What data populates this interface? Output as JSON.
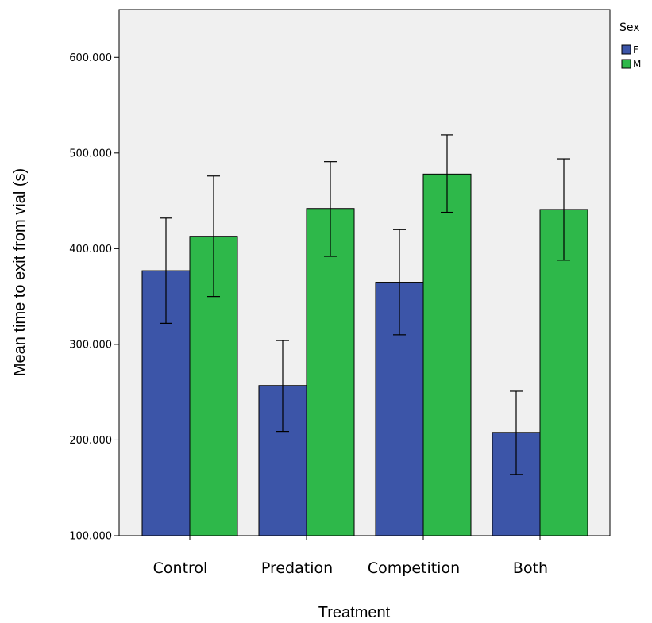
{
  "chart_data": {
    "type": "bar",
    "xlabel": "Treatment",
    "ylabel": "Mean time to exit from vial (s)",
    "categories": [
      "Control",
      "Predation",
      "Competition",
      "Both"
    ],
    "ylim": [
      100,
      650
    ],
    "yticks": [
      100,
      200,
      300,
      400,
      500,
      600
    ],
    "ytick_labels": [
      "100.000",
      "200.000",
      "300.000",
      "400.000",
      "500.000",
      "600.000"
    ],
    "grid": false,
    "legend": {
      "title": "Sex",
      "placement": "top-right outside"
    },
    "series": [
      {
        "name": "F",
        "color": "#3c55a8",
        "values": [
          377,
          257,
          365,
          208
        ],
        "error_low": [
          322,
          209,
          310,
          164
        ],
        "error_high": [
          432,
          304,
          420,
          251
        ]
      },
      {
        "name": "M",
        "color": "#2eb84a",
        "values": [
          413,
          442,
          478,
          441
        ],
        "error_low": [
          350,
          392,
          438,
          388
        ],
        "error_high": [
          476,
          491,
          519,
          494
        ]
      }
    ],
    "plot_background": "#f0f0f0"
  }
}
